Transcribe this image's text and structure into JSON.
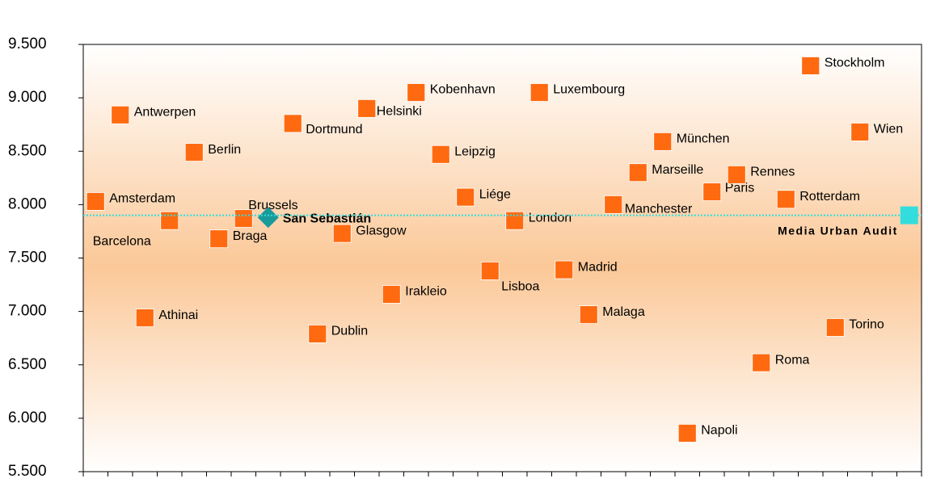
{
  "chart_data": {
    "type": "scatter",
    "categories": [
      "Amsterdam",
      "Antwerpen",
      "Athinai",
      "Barcelona",
      "Berlin",
      "Braga",
      "Brussels",
      "San Sebastián",
      "Dortmund",
      "Dublin",
      "Glasgow",
      "Helsinki",
      "Irakleio",
      "Kobenhavn",
      "Leipzig",
      "Liége",
      "Lisboa",
      "London",
      "Luxembourg",
      "Madrid",
      "Malaga",
      "Manchester",
      "Marseille",
      "München",
      "Napoli",
      "Paris",
      "Rennes",
      "Roma",
      "Rotterdam",
      "Stockholm",
      "Torino",
      "Wien",
      null,
      "Media Urban Audit"
    ],
    "values": [
      8030,
      8840,
      6940,
      7850,
      8490,
      7680,
      7870,
      7880,
      8760,
      6790,
      7730,
      8900,
      7160,
      9050,
      8470,
      8070,
      7380,
      7850,
      9050,
      7390,
      6970,
      8000,
      8300,
      8590,
      5860,
      8120,
      8280,
      6520,
      8050,
      9300,
      6850,
      8680,
      null,
      7900
    ],
    "color": "#ff6a10",
    "highlight": {
      "category": "San Sebastián",
      "color": "#1a9a9a"
    },
    "reference": {
      "category": "Media Urban Audit",
      "color": "#33dddd"
    },
    "ylim": [
      5500,
      9500
    ],
    "yticks": [
      {
        "value": 5500,
        "label": "5.500"
      },
      {
        "value": 6000,
        "label": "6.000"
      },
      {
        "value": 6500,
        "label": "6.500"
      },
      {
        "value": 7000,
        "label": "7.000"
      },
      {
        "value": 7500,
        "label": "7.500"
      },
      {
        "value": 8000,
        "label": "8.000"
      },
      {
        "value": 8500,
        "label": "8.500"
      },
      {
        "value": 9000,
        "label": "9.000"
      },
      {
        "value": 9500,
        "label": "9.500"
      }
    ]
  }
}
